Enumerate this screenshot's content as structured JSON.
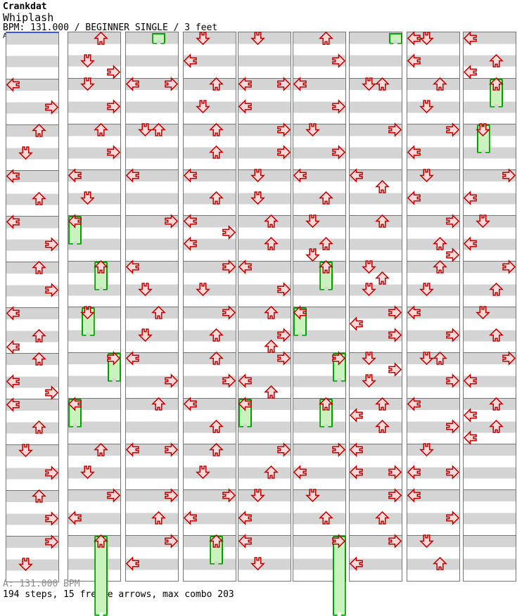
{
  "header": {
    "artist": "Crankdat",
    "title": "Whiplash",
    "info": "BPM: 131.000 / BEGINNER SINGLE / 3 feet"
  },
  "footer": {
    "section_bpm": "A: 131.000 BPM",
    "summary": "194 steps, 15 freeze arrows, max combo 203"
  },
  "colors": {
    "stripe_gray": "#d4d4d4",
    "stripe_white": "#ffffff",
    "measure_border": "#757575",
    "section_marker_blue": "#3a55d9",
    "arrow_stroke": "#c00000",
    "arrow_fill": "#fbd8d8",
    "freeze_fill": "#c9f2bd",
    "freeze_stroke": "#00a000"
  },
  "chart_data": {
    "type": "step_chart",
    "section_label": "A",
    "lanes": [
      "L",
      "D",
      "U",
      "R"
    ],
    "columns_count": 9,
    "measures_per_column": 12,
    "rows_per_measure": 4,
    "note_key": "p = row index in column (measure*4+row), d = arrow direction, f = freeze body length in rows, tail = freeze continuation tab from previous column",
    "columns": [
      {
        "notes": [
          {
            "p": 4,
            "d": "L"
          },
          {
            "p": 6,
            "d": "R"
          },
          {
            "p": 8,
            "d": "U"
          },
          {
            "p": 10,
            "d": "D"
          },
          {
            "p": 12,
            "d": "L"
          },
          {
            "p": 14,
            "d": "U"
          },
          {
            "p": 16,
            "d": "L"
          },
          {
            "p": 18,
            "d": "R"
          },
          {
            "p": 20,
            "d": "U"
          },
          {
            "p": 22,
            "d": "R"
          },
          {
            "p": 24,
            "d": "L"
          },
          {
            "p": 26,
            "d": "U"
          },
          {
            "p": 27,
            "d": "L"
          },
          {
            "p": 28,
            "d": "U"
          },
          {
            "p": 30,
            "d": "L"
          },
          {
            "p": 31,
            "d": "R"
          },
          {
            "p": 32,
            "d": "L"
          },
          {
            "p": 34,
            "d": "U"
          },
          {
            "p": 36,
            "d": "D"
          },
          {
            "p": 38,
            "d": "R"
          },
          {
            "p": 40,
            "d": "U"
          },
          {
            "p": 42,
            "d": "R"
          },
          {
            "p": 44,
            "d": "R"
          },
          {
            "p": 46,
            "d": "D"
          }
        ]
      },
      {
        "notes": [
          {
            "p": 0,
            "d": "U"
          },
          {
            "p": 2,
            "d": "D"
          },
          {
            "p": 3,
            "d": "R"
          },
          {
            "p": 4,
            "d": "D"
          },
          {
            "p": 6,
            "d": "R"
          },
          {
            "p": 8,
            "d": "U"
          },
          {
            "p": 10,
            "d": "R"
          },
          {
            "p": 12,
            "d": "L"
          },
          {
            "p": 14,
            "d": "D"
          },
          {
            "p": 16,
            "d": "L",
            "f": 2.5
          },
          {
            "p": 20,
            "d": "U",
            "f": 2.5
          },
          {
            "p": 24,
            "d": "D",
            "f": 2.5
          },
          {
            "p": 28,
            "d": "R",
            "f": 2.5
          },
          {
            "p": 32,
            "d": "L",
            "f": 2.5
          },
          {
            "p": 36,
            "d": "U"
          },
          {
            "p": 38,
            "d": "D"
          },
          {
            "p": 40,
            "d": "R"
          },
          {
            "p": 42,
            "d": "L"
          },
          {
            "p": 44,
            "d": "U",
            "f": 7
          }
        ]
      },
      {
        "notes": [
          {
            "p": 0,
            "d": "U",
            "tail": true
          },
          {
            "p": 4,
            "d": "L"
          },
          {
            "p": 4,
            "d": "R"
          },
          {
            "p": 8,
            "d": "D"
          },
          {
            "p": 8,
            "d": "U"
          },
          {
            "p": 12,
            "d": "L"
          },
          {
            "p": 16,
            "d": "R"
          },
          {
            "p": 20,
            "d": "L"
          },
          {
            "p": 22,
            "d": "D"
          },
          {
            "p": 24,
            "d": "U"
          },
          {
            "p": 26,
            "d": "D"
          },
          {
            "p": 28,
            "d": "L"
          },
          {
            "p": 30,
            "d": "R"
          },
          {
            "p": 32,
            "d": "U"
          },
          {
            "p": 36,
            "d": "L"
          },
          {
            "p": 36,
            "d": "R"
          },
          {
            "p": 40,
            "d": "R"
          },
          {
            "p": 42,
            "d": "U"
          },
          {
            "p": 44,
            "d": "R"
          },
          {
            "p": 46,
            "d": "L"
          }
        ]
      },
      {
        "notes": [
          {
            "p": 0,
            "d": "D"
          },
          {
            "p": 2,
            "d": "L"
          },
          {
            "p": 4,
            "d": "U"
          },
          {
            "p": 6,
            "d": "D"
          },
          {
            "p": 8,
            "d": "U"
          },
          {
            "p": 10,
            "d": "U"
          },
          {
            "p": 12,
            "d": "L"
          },
          {
            "p": 14,
            "d": "U"
          },
          {
            "p": 16,
            "d": "L"
          },
          {
            "p": 17,
            "d": "R"
          },
          {
            "p": 18,
            "d": "L"
          },
          {
            "p": 20,
            "d": "R"
          },
          {
            "p": 22,
            "d": "D"
          },
          {
            "p": 24,
            "d": "R"
          },
          {
            "p": 26,
            "d": "U"
          },
          {
            "p": 28,
            "d": "U"
          },
          {
            "p": 30,
            "d": "R"
          },
          {
            "p": 32,
            "d": "L"
          },
          {
            "p": 34,
            "d": "U"
          },
          {
            "p": 36,
            "d": "U"
          },
          {
            "p": 38,
            "d": "D"
          },
          {
            "p": 40,
            "d": "R"
          },
          {
            "p": 42,
            "d": "L"
          },
          {
            "p": 44,
            "d": "U",
            "f": 2.5
          }
        ]
      },
      {
        "notes": [
          {
            "p": 0,
            "d": "D"
          },
          {
            "p": 4,
            "d": "L"
          },
          {
            "p": 4,
            "d": "R"
          },
          {
            "p": 6,
            "d": "L"
          },
          {
            "p": 8,
            "d": "R"
          },
          {
            "p": 10,
            "d": "R"
          },
          {
            "p": 12,
            "d": "D"
          },
          {
            "p": 14,
            "d": "D"
          },
          {
            "p": 16,
            "d": "U"
          },
          {
            "p": 18,
            "d": "U"
          },
          {
            "p": 20,
            "d": "L"
          },
          {
            "p": 22,
            "d": "R"
          },
          {
            "p": 24,
            "d": "U"
          },
          {
            "p": 26,
            "d": "R"
          },
          {
            "p": 27,
            "d": "U"
          },
          {
            "p": 28,
            "d": "R"
          },
          {
            "p": 30,
            "d": "L"
          },
          {
            "p": 31,
            "d": "U"
          },
          {
            "p": 32,
            "d": "L",
            "f": 2.5
          },
          {
            "p": 36,
            "d": "R"
          },
          {
            "p": 38,
            "d": "U"
          },
          {
            "p": 40,
            "d": "D"
          },
          {
            "p": 42,
            "d": "L"
          },
          {
            "p": 44,
            "d": "L"
          },
          {
            "p": 46,
            "d": "D"
          }
        ]
      },
      {
        "notes": [
          {
            "p": 0,
            "d": "U"
          },
          {
            "p": 2,
            "d": "R"
          },
          {
            "p": 4,
            "d": "L"
          },
          {
            "p": 6,
            "d": "R"
          },
          {
            "p": 8,
            "d": "D"
          },
          {
            "p": 10,
            "d": "R"
          },
          {
            "p": 12,
            "d": "L"
          },
          {
            "p": 14,
            "d": "U"
          },
          {
            "p": 16,
            "d": "D"
          },
          {
            "p": 18,
            "d": "U"
          },
          {
            "p": 19,
            "d": "D"
          },
          {
            "p": 20,
            "d": "U",
            "f": 2.5
          },
          {
            "p": 24,
            "d": "L",
            "f": 2.5
          },
          {
            "p": 28,
            "d": "R",
            "f": 2.5
          },
          {
            "p": 32,
            "d": "U",
            "f": 2.5
          },
          {
            "p": 36,
            "d": "R"
          },
          {
            "p": 38,
            "d": "L"
          },
          {
            "p": 40,
            "d": "D"
          },
          {
            "p": 42,
            "d": "U"
          },
          {
            "p": 44,
            "d": "R",
            "f": 7
          }
        ]
      },
      {
        "notes": [
          {
            "p": 0,
            "d": "R",
            "tail": true
          },
          {
            "p": 4,
            "d": "D"
          },
          {
            "p": 4,
            "d": "U"
          },
          {
            "p": 8,
            "d": "R"
          },
          {
            "p": 12,
            "d": "L"
          },
          {
            "p": 13,
            "d": "U"
          },
          {
            "p": 16,
            "d": "U"
          },
          {
            "p": 20,
            "d": "D"
          },
          {
            "p": 21,
            "d": "U"
          },
          {
            "p": 22,
            "d": "D"
          },
          {
            "p": 24,
            "d": "R"
          },
          {
            "p": 25,
            "d": "L"
          },
          {
            "p": 26,
            "d": "R"
          },
          {
            "p": 28,
            "d": "D"
          },
          {
            "p": 29,
            "d": "R"
          },
          {
            "p": 30,
            "d": "D"
          },
          {
            "p": 32,
            "d": "U"
          },
          {
            "p": 33,
            "d": "L"
          },
          {
            "p": 34,
            "d": "U"
          },
          {
            "p": 36,
            "d": "L"
          },
          {
            "p": 38,
            "d": "L"
          },
          {
            "p": 38,
            "d": "R"
          },
          {
            "p": 40,
            "d": "R"
          },
          {
            "p": 42,
            "d": "U"
          },
          {
            "p": 44,
            "d": "R"
          },
          {
            "p": 46,
            "d": "L"
          }
        ]
      },
      {
        "notes": [
          {
            "p": 0,
            "d": "L"
          },
          {
            "p": 0,
            "d": "D"
          },
          {
            "p": 2,
            "d": "L"
          },
          {
            "p": 4,
            "d": "U"
          },
          {
            "p": 6,
            "d": "D"
          },
          {
            "p": 8,
            "d": "R"
          },
          {
            "p": 10,
            "d": "L"
          },
          {
            "p": 12,
            "d": "D"
          },
          {
            "p": 14,
            "d": "L"
          },
          {
            "p": 16,
            "d": "R"
          },
          {
            "p": 18,
            "d": "U"
          },
          {
            "p": 19,
            "d": "R"
          },
          {
            "p": 20,
            "d": "U"
          },
          {
            "p": 22,
            "d": "D"
          },
          {
            "p": 24,
            "d": "L"
          },
          {
            "p": 26,
            "d": "R"
          },
          {
            "p": 28,
            "d": "D"
          },
          {
            "p": 28,
            "d": "U"
          },
          {
            "p": 30,
            "d": "R"
          },
          {
            "p": 32,
            "d": "L"
          },
          {
            "p": 34,
            "d": "R"
          },
          {
            "p": 36,
            "d": "D"
          },
          {
            "p": 38,
            "d": "L"
          },
          {
            "p": 38,
            "d": "R"
          },
          {
            "p": 40,
            "d": "L"
          },
          {
            "p": 42,
            "d": "R"
          },
          {
            "p": 44,
            "d": "D"
          },
          {
            "p": 46,
            "d": "U"
          }
        ]
      },
      {
        "notes": [
          {
            "p": 0,
            "d": "L"
          },
          {
            "p": 2,
            "d": "U"
          },
          {
            "p": 3,
            "d": "L"
          },
          {
            "p": 4,
            "d": "U",
            "f": 2.5
          },
          {
            "p": 8,
            "d": "D",
            "f": 2.5
          },
          {
            "p": 12,
            "d": "R"
          },
          {
            "p": 14,
            "d": "L"
          },
          {
            "p": 16,
            "d": "D"
          },
          {
            "p": 18,
            "d": "L"
          },
          {
            "p": 20,
            "d": "R"
          },
          {
            "p": 22,
            "d": "U"
          },
          {
            "p": 24,
            "d": "D"
          },
          {
            "p": 26,
            "d": "U"
          },
          {
            "p": 28,
            "d": "R"
          },
          {
            "p": 30,
            "d": "L"
          },
          {
            "p": 32,
            "d": "U"
          },
          {
            "p": 33,
            "d": "L"
          },
          {
            "p": 34,
            "d": "U"
          },
          {
            "p": 35,
            "d": "L"
          }
        ]
      }
    ]
  }
}
